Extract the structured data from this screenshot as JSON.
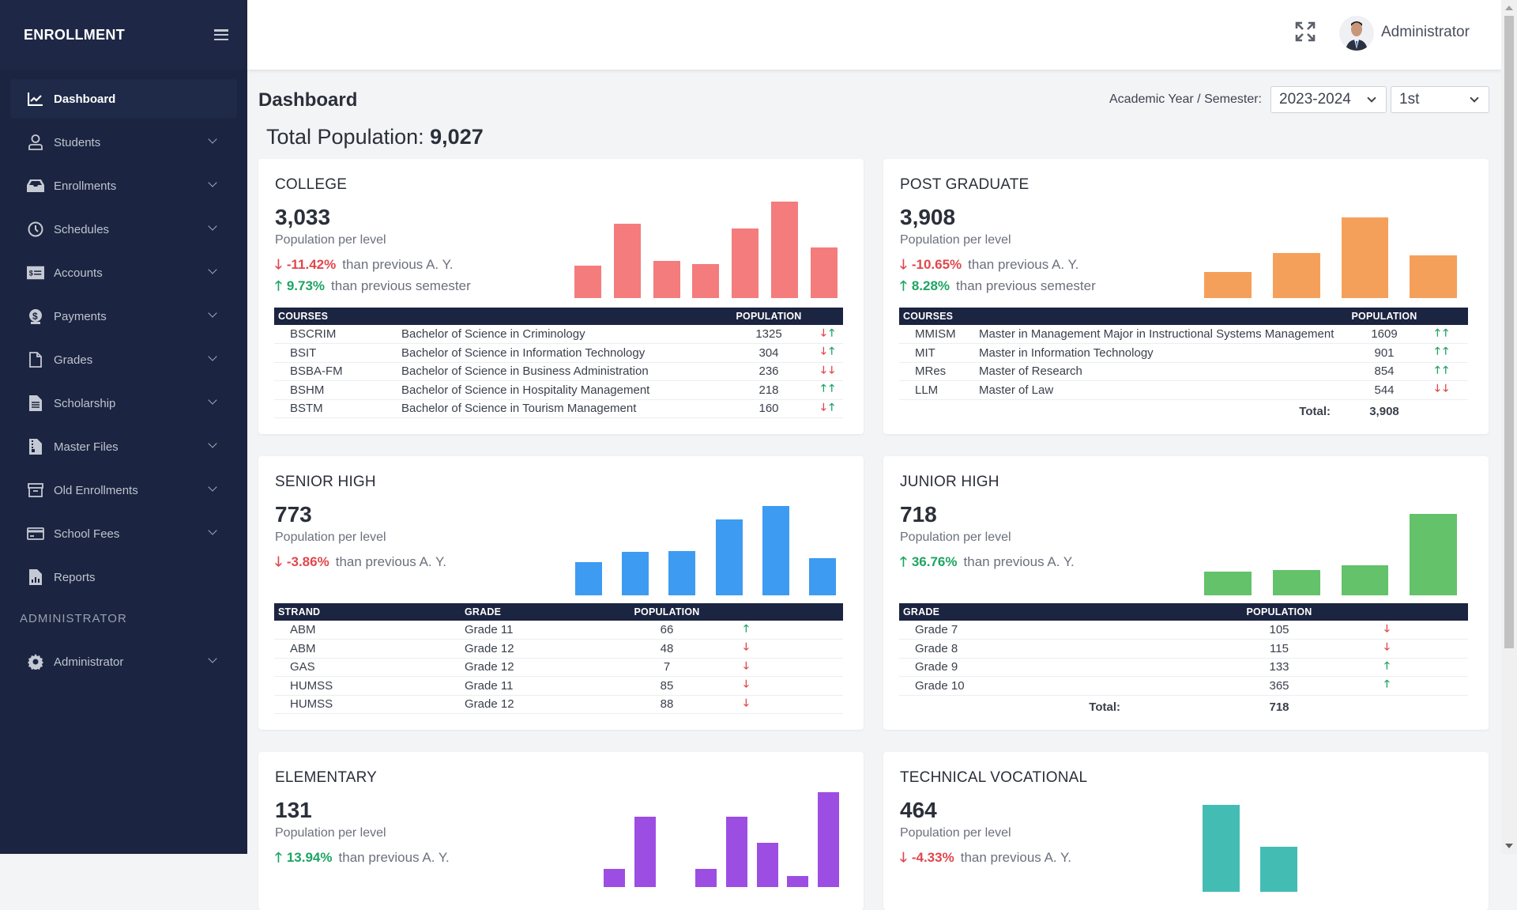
{
  "brand": "ENROLLMENT",
  "sidebar": {
    "items": [
      {
        "label": "Dashboard",
        "icon": "chart-line-icon",
        "active": true
      },
      {
        "label": "Students",
        "icon": "user-icon"
      },
      {
        "label": "Enrollments",
        "icon": "inbox-icon"
      },
      {
        "label": "Schedules",
        "icon": "clock-icon"
      },
      {
        "label": "Accounts",
        "icon": "money-check-icon"
      },
      {
        "label": "Payments",
        "icon": "dollar-icon"
      },
      {
        "label": "Grades",
        "icon": "file-icon"
      },
      {
        "label": "Scholarship",
        "icon": "document-icon"
      },
      {
        "label": "Master Files",
        "icon": "file-archive-icon"
      },
      {
        "label": "Old Enrollments",
        "icon": "box-archive-icon"
      },
      {
        "label": "School Fees",
        "icon": "credit-card-icon"
      },
      {
        "label": "Reports",
        "icon": "report-icon"
      }
    ],
    "section": "ADMINISTRATOR",
    "admin_item": {
      "label": "Administrator",
      "icon": "gear-icon"
    }
  },
  "header": {
    "user": "Administrator"
  },
  "page": {
    "title": "Dashboard",
    "total_label": "Total Population:",
    "total_value": "9,027",
    "ay_label": "Academic Year / Semester:",
    "year": "2023-2024",
    "semester": "1st"
  },
  "colors": {
    "up": "#1fa463",
    "down": "#e0474c",
    "college": "#f47c7c",
    "postgrad": "#f5a05a",
    "senior": "#3d9bf2",
    "junior": "#63c26a",
    "elementary": "#9c4ee3",
    "techvoc": "#43bdb4"
  },
  "cards": {
    "college": {
      "title": "COLLEGE",
      "value": "3,033",
      "sub": "Population per level",
      "trends": [
        {
          "dir": "down",
          "pct": "-11.42%",
          "text": "than previous A. Y."
        },
        {
          "dir": "up",
          "pct": "9.73%",
          "text": "than previous semester"
        }
      ],
      "bars": [
        32,
        74,
        37,
        34,
        69,
        96,
        50
      ],
      "headers": [
        "COURSES",
        "",
        "POPULATION",
        ""
      ],
      "rows": [
        {
          "code": "BSCRIM",
          "name": "Bachelor of Science in Criminology",
          "pop": "1325",
          "a": [
            "down",
            "up"
          ]
        },
        {
          "code": "BSIT",
          "name": "Bachelor of Science in Information Technology",
          "pop": "304",
          "a": [
            "down",
            "up"
          ]
        },
        {
          "code": "BSBA-FM",
          "name": "Bachelor of Science in Business Administration",
          "pop": "236",
          "a": [
            "down",
            "down"
          ]
        },
        {
          "code": "BSHM",
          "name": "Bachelor of Science in Hospitality Management",
          "pop": "218",
          "a": [
            "up",
            "up"
          ]
        },
        {
          "code": "BSTM",
          "name": "Bachelor of Science in Tourism Management",
          "pop": "160",
          "a": [
            "down",
            "up"
          ]
        }
      ]
    },
    "postgrad": {
      "title": "POST GRADUATE",
      "value": "3,908",
      "sub": "Population per level",
      "trends": [
        {
          "dir": "down",
          "pct": "-10.65%",
          "text": "than previous A. Y."
        },
        {
          "dir": "up",
          "pct": "8.28%",
          "text": "than previous semester"
        }
      ],
      "bars": [
        26,
        45,
        81,
        43
      ],
      "headers": [
        "COURSES",
        "",
        "POPULATION",
        ""
      ],
      "rows": [
        {
          "code": "MMISM",
          "name": "Master in Management Major in Instructional Systems Management",
          "pop": "1609",
          "a": [
            "up",
            "up"
          ]
        },
        {
          "code": "MIT",
          "name": "Master in Information Technology",
          "pop": "901",
          "a": [
            "up",
            "up"
          ]
        },
        {
          "code": "MRes",
          "name": "Master of Research",
          "pop": "854",
          "a": [
            "up",
            "up"
          ]
        },
        {
          "code": "LLM",
          "name": "Master of Law",
          "pop": "544",
          "a": [
            "down",
            "down"
          ]
        }
      ],
      "total_label": "Total:",
      "total": "3,908"
    },
    "senior": {
      "title": "SENIOR HIGH",
      "value": "773",
      "sub": "Population per level",
      "trends": [
        {
          "dir": "down",
          "pct": "-3.86%",
          "text": "than previous A. Y."
        }
      ],
      "bars": [
        33,
        43,
        44,
        75,
        88,
        37
      ],
      "headers": [
        "STRAND",
        "GRADE",
        "POPULATION",
        ""
      ],
      "rows": [
        {
          "code": "ABM",
          "name": "Grade 11",
          "pop": "66",
          "a": [
            "up"
          ]
        },
        {
          "code": "ABM",
          "name": "Grade 12",
          "pop": "48",
          "a": [
            "down"
          ]
        },
        {
          "code": "GAS",
          "name": "Grade 12",
          "pop": "7",
          "a": [
            "down"
          ]
        },
        {
          "code": "HUMSS",
          "name": "Grade 11",
          "pop": "85",
          "a": [
            "down"
          ]
        },
        {
          "code": "HUMSS",
          "name": "Grade 12",
          "pop": "88",
          "a": [
            "down"
          ]
        }
      ]
    },
    "junior": {
      "title": "JUNIOR HIGH",
      "value": "718",
      "sub": "Population per level",
      "trends": [
        {
          "dir": "up",
          "pct": "36.76%",
          "text": "than previous A. Y."
        }
      ],
      "bars": [
        105,
        115,
        133,
        365
      ],
      "headers": [
        "GRADE",
        "POPULATION",
        ""
      ],
      "rows": [
        {
          "name": "Grade 7",
          "pop": "105",
          "a": [
            "down"
          ]
        },
        {
          "name": "Grade 8",
          "pop": "115",
          "a": [
            "down"
          ]
        },
        {
          "name": "Grade 9",
          "pop": "133",
          "a": [
            "up"
          ]
        },
        {
          "name": "Grade 10",
          "pop": "365",
          "a": [
            "up"
          ]
        }
      ],
      "total_label": "Total:",
      "total": "718"
    },
    "elementary": {
      "title": "ELEMENTARY",
      "value": "131",
      "sub": "Population per level",
      "trends": [
        {
          "dir": "up",
          "pct": "13.94%",
          "text": "than previous A. Y."
        }
      ],
      "bars": [
        12,
        46,
        0,
        12,
        46,
        29,
        7,
        62
      ]
    },
    "techvoc": {
      "title": "TECHNICAL VOCATIONAL",
      "value": "464",
      "sub": "Population per level",
      "trends": [
        {
          "dir": "down",
          "pct": "-4.33%",
          "text": "than previous A. Y."
        }
      ],
      "bars": [
        60,
        31
      ]
    }
  }
}
